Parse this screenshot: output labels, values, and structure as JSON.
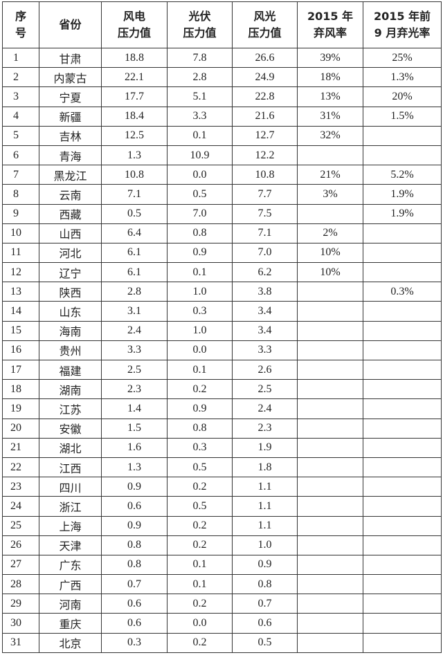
{
  "table": {
    "headers": [
      [
        "序",
        "号"
      ],
      [
        "省份",
        ""
      ],
      [
        "风电",
        "压力值"
      ],
      [
        "光伏",
        "压力值"
      ],
      [
        "风光",
        "压力值"
      ],
      [
        "2015 年",
        "弃风率"
      ],
      [
        "2015 年前",
        "9 月弃光率"
      ]
    ],
    "rows": [
      [
        "1",
        "甘肃",
        "18.8",
        "7.8",
        "26.6",
        "39%",
        "25%"
      ],
      [
        "2",
        "内蒙古",
        "22.1",
        "2.8",
        "24.9",
        "18%",
        "1.3%"
      ],
      [
        "3",
        "宁夏",
        "17.7",
        "5.1",
        "22.8",
        "13%",
        "20%"
      ],
      [
        "4",
        "新疆",
        "18.4",
        "3.3",
        "21.6",
        "31%",
        "1.5%"
      ],
      [
        "5",
        "吉林",
        "12.5",
        "0.1",
        "12.7",
        "32%",
        ""
      ],
      [
        "6",
        "青海",
        "1.3",
        "10.9",
        "12.2",
        "",
        ""
      ],
      [
        "7",
        "黑龙江",
        "10.8",
        "0.0",
        "10.8",
        "21%",
        "5.2%"
      ],
      [
        "8",
        "云南",
        "7.1",
        "0.5",
        "7.7",
        "3%",
        "1.9%"
      ],
      [
        "9",
        "西藏",
        "0.5",
        "7.0",
        "7.5",
        "",
        "1.9%"
      ],
      [
        "10",
        "山西",
        "6.4",
        "0.8",
        "7.1",
        "2%",
        ""
      ],
      [
        "11",
        "河北",
        "6.1",
        "0.9",
        "7.0",
        "10%",
        ""
      ],
      [
        "12",
        "辽宁",
        "6.1",
        "0.1",
        "6.2",
        "10%",
        ""
      ],
      [
        "13",
        "陕西",
        "2.8",
        "1.0",
        "3.8",
        "",
        "0.3%"
      ],
      [
        "14",
        "山东",
        "3.1",
        "0.3",
        "3.4",
        "",
        ""
      ],
      [
        "15",
        "海南",
        "2.4",
        "1.0",
        "3.4",
        "",
        ""
      ],
      [
        "16",
        "贵州",
        "3.3",
        "0.0",
        "3.3",
        "",
        ""
      ],
      [
        "17",
        "福建",
        "2.5",
        "0.1",
        "2.6",
        "",
        ""
      ],
      [
        "18",
        "湖南",
        "2.3",
        "0.2",
        "2.5",
        "",
        ""
      ],
      [
        "19",
        "江苏",
        "1.4",
        "0.9",
        "2.4",
        "",
        ""
      ],
      [
        "20",
        "安徽",
        "1.5",
        "0.8",
        "2.3",
        "",
        ""
      ],
      [
        "21",
        "湖北",
        "1.6",
        "0.3",
        "1.9",
        "",
        ""
      ],
      [
        "22",
        "江西",
        "1.3",
        "0.5",
        "1.8",
        "",
        ""
      ],
      [
        "23",
        "四川",
        "0.9",
        "0.2",
        "1.1",
        "",
        ""
      ],
      [
        "24",
        "浙江",
        "0.6",
        "0.5",
        "1.1",
        "",
        ""
      ],
      [
        "25",
        "上海",
        "0.9",
        "0.2",
        "1.1",
        "",
        ""
      ],
      [
        "26",
        "天津",
        "0.8",
        "0.2",
        "1.0",
        "",
        ""
      ],
      [
        "27",
        "广东",
        "0.8",
        "0.1",
        "0.9",
        "",
        ""
      ],
      [
        "28",
        "广西",
        "0.7",
        "0.1",
        "0.8",
        "",
        ""
      ],
      [
        "29",
        "河南",
        "0.6",
        "0.2",
        "0.7",
        "",
        ""
      ],
      [
        "30",
        "重庆",
        "0.6",
        "0.0",
        "0.6",
        "",
        ""
      ],
      [
        "31",
        "北京",
        "0.3",
        "0.2",
        "0.5",
        "",
        ""
      ]
    ]
  }
}
